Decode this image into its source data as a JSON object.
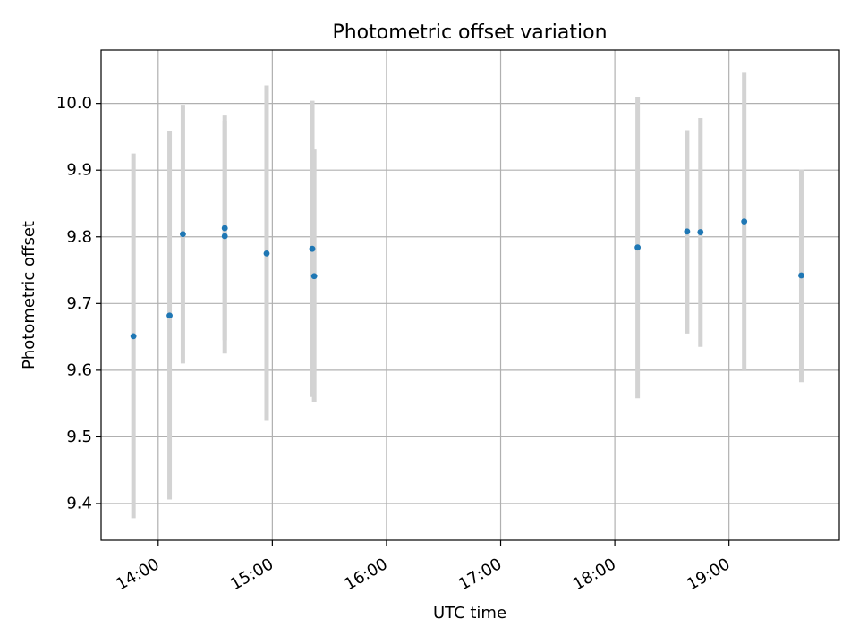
{
  "chart_data": {
    "type": "scatter",
    "title": "Photometric offset variation",
    "xlabel": "UTC time",
    "ylabel": "Photometric offset",
    "x_is_time": true,
    "xlim": [
      "13:30",
      "19:58"
    ],
    "ylim": [
      9.345,
      10.08
    ],
    "grid": true,
    "xticks": [
      "14:00",
      "15:00",
      "16:00",
      "17:00",
      "18:00",
      "19:00"
    ],
    "yticks": [
      9.4,
      9.5,
      9.6,
      9.7,
      9.8,
      9.9,
      10.0
    ],
    "yticklabels": [
      "9.4",
      "9.5",
      "9.6",
      "9.7",
      "9.8",
      "9.9",
      "10.0"
    ],
    "marker_color": "#1f77b4",
    "errorbar_color": "#d3d3d3",
    "points": [
      {
        "x": "13:47",
        "y": 9.651,
        "ylow": 9.378,
        "yhigh": 9.925
      },
      {
        "x": "14:06",
        "y": 9.682,
        "ylow": 9.406,
        "yhigh": 9.959
      },
      {
        "x": "14:13",
        "y": 9.804,
        "ylow": 9.61,
        "yhigh": 9.998
      },
      {
        "x": "14:35",
        "y": 9.813,
        "ylow": 9.645,
        "yhigh": 9.982
      },
      {
        "x": "14:35",
        "y": 9.801,
        "ylow": 9.625,
        "yhigh": 9.974
      },
      {
        "x": "14:57",
        "y": 9.775,
        "ylow": 9.524,
        "yhigh": 10.027
      },
      {
        "x": "15:21",
        "y": 9.782,
        "ylow": 9.56,
        "yhigh": 10.004
      },
      {
        "x": "15:22",
        "y": 9.741,
        "ylow": 9.552,
        "yhigh": 9.931
      },
      {
        "x": "18:12",
        "y": 9.784,
        "ylow": 9.558,
        "yhigh": 10.009
      },
      {
        "x": "18:38",
        "y": 9.808,
        "ylow": 9.655,
        "yhigh": 9.96
      },
      {
        "x": "18:45",
        "y": 9.807,
        "ylow": 9.635,
        "yhigh": 9.978
      },
      {
        "x": "19:08",
        "y": 9.823,
        "ylow": 9.6,
        "yhigh": 10.046
      },
      {
        "x": "19:38",
        "y": 9.742,
        "ylow": 9.582,
        "yhigh": 9.901
      }
    ]
  }
}
